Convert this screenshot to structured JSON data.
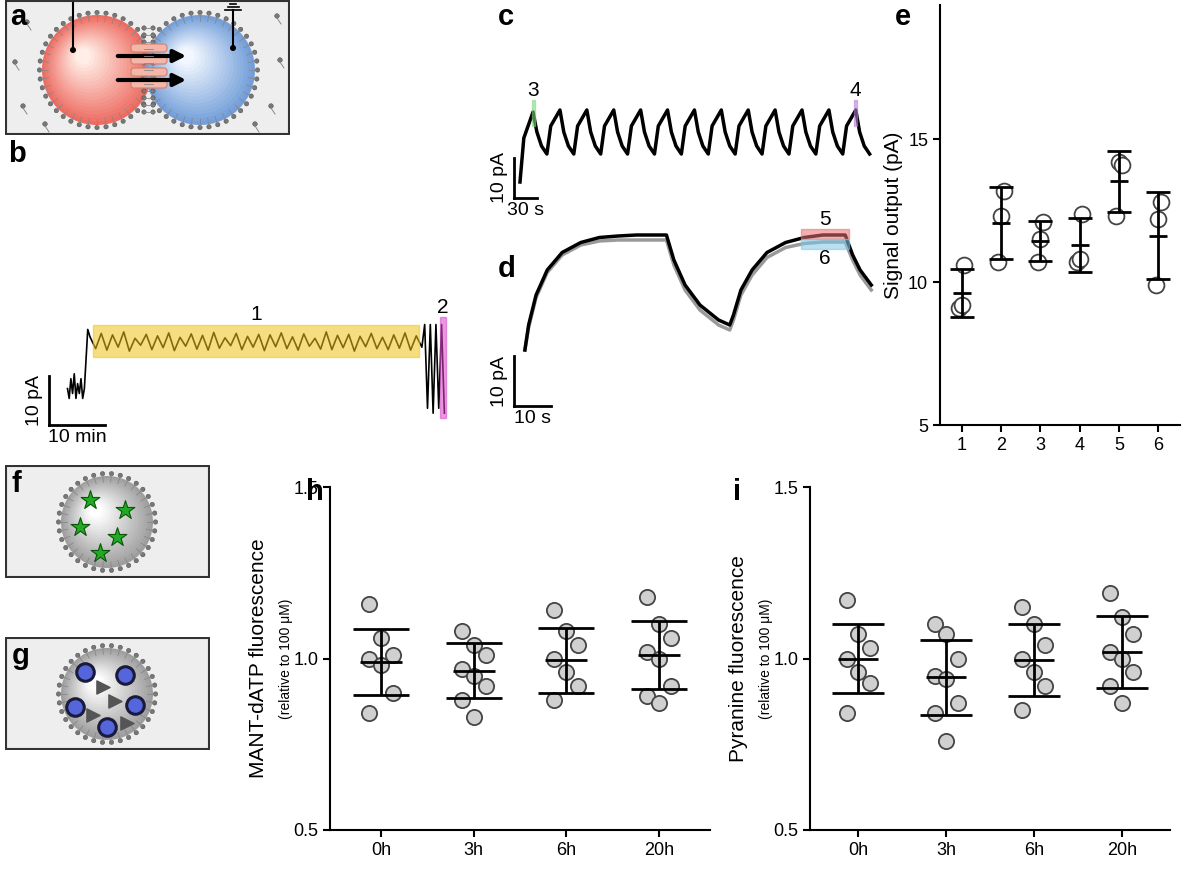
{
  "diagrams": [
    {
      "panel": "a"
    },
    {
      "panel": "f"
    },
    {
      "panel": "g"
    }
  ],
  "chart_data": [
    {
      "panel": "b",
      "type": "line",
      "tick_labels": false,
      "color": "#000000",
      "x": [
        0,
        0.3,
        0.6,
        0.9,
        1.2,
        1.5,
        1.8,
        2.1,
        2.4,
        2.7,
        3.0,
        3.3,
        3.6,
        4,
        5,
        6,
        7,
        8,
        9,
        10,
        11,
        12,
        13,
        14,
        15,
        16,
        17,
        18,
        19,
        20,
        21,
        22,
        23,
        24,
        25,
        26,
        27,
        28,
        29,
        30,
        31,
        32,
        33,
        34,
        35,
        36,
        37,
        38,
        39,
        40,
        41,
        42,
        43,
        44,
        45,
        46,
        47,
        48,
        49,
        50,
        51,
        52,
        53,
        54,
        55,
        56,
        57,
        58,
        59,
        60,
        61,
        62,
        63,
        63.5,
        64,
        64.5,
        65,
        65.5,
        66,
        66.5,
        67
      ],
      "values": [
        0,
        -2,
        2,
        -1,
        3,
        -2,
        1,
        -1,
        2,
        -2,
        0,
        6,
        12,
        10.5,
        8.1,
        11.2,
        7.8,
        10.9,
        8.4,
        11.5,
        7.6,
        10.2,
        8.8,
        11.0,
        7.9,
        10.7,
        8.3,
        11.3,
        7.7,
        10.4,
        8.6,
        11.1,
        8.0,
        10.8,
        7.8,
        11.4,
        8.2,
        10.3,
        8.7,
        11.2,
        7.9,
        10.6,
        8.4,
        11.0,
        7.7,
        10.9,
        8.5,
        11.3,
        8.1,
        10.5,
        7.8,
        11.1,
        8.6,
        10.2,
        8.0,
        11.5,
        7.9,
        10.8,
        8.3,
        11.0,
        7.6,
        10.6,
        8.5,
        11.2,
        8.1,
        10.4,
        7.9,
        10.9,
        8.2,
        11.3,
        7.8,
        10.7,
        8.4,
        13,
        -4,
        13,
        -5,
        13,
        -4,
        13,
        -5
      ],
      "xlim": [
        -4,
        68
      ],
      "ylim": [
        -8,
        20
      ],
      "scale_bar": {
        "x": {
          "value": 10,
          "label": "10 min"
        },
        "y": {
          "value": 10,
          "label": "10 pA"
        }
      },
      "highlights": [
        {
          "label": "1",
          "x": [
            4.5,
            62.5
          ],
          "y": [
            6.5,
            13
          ],
          "color": "#f0c419"
        },
        {
          "label": "2",
          "x": [
            66.3,
            67.3
          ],
          "y": [
            -6,
            14.5
          ],
          "color": "#d946c8"
        }
      ]
    },
    {
      "panel": "c",
      "type": "line",
      "tick_labels": false,
      "color": "#000000",
      "x": [
        0,
        5,
        17,
        22,
        28,
        35,
        40,
        52,
        57,
        63,
        70,
        75,
        87,
        92,
        98,
        105,
        110,
        122,
        127,
        133,
        140,
        145,
        157,
        162,
        168,
        175,
        180,
        192,
        197,
        203,
        210,
        215,
        227,
        232,
        238,
        245,
        250,
        262,
        267,
        273,
        280,
        285,
        297,
        302,
        308,
        315,
        320,
        332,
        337,
        343,
        350,
        355,
        367,
        372,
        378,
        385,
        390,
        402,
        407,
        413,
        420,
        425,
        437,
        442,
        448,
        455
      ],
      "values": [
        -6,
        5,
        11.5,
        6.5,
        3,
        1,
        8,
        12,
        6.5,
        3,
        1,
        8,
        12,
        6.5,
        3,
        1,
        8,
        12,
        6.5,
        3,
        1,
        8,
        12,
        6.5,
        3,
        1,
        8,
        12,
        6.5,
        3,
        1,
        8,
        12,
        6.5,
        3,
        1,
        8,
        12,
        6.5,
        3,
        1,
        8,
        12,
        6.5,
        3,
        1,
        8,
        12,
        6.5,
        3,
        1,
        8,
        12,
        6.5,
        3,
        1,
        8,
        12,
        6.5,
        3,
        1,
        8,
        12,
        6.5,
        3,
        1
      ],
      "xlim": [
        -13,
        462
      ],
      "ylim": [
        -10.5,
        17
      ],
      "scale_bar": {
        "x": {
          "value": 30,
          "label": "30 s"
        },
        "y": {
          "value": 10,
          "label": "10 pA"
        }
      },
      "highlights": [
        {
          "label": "3",
          "x": [
            15,
            19
          ],
          "y": [
            8,
            14.5
          ],
          "color": "#7fd67f"
        },
        {
          "label": "4",
          "x": [
            435,
            439
          ],
          "y": [
            8,
            14.5
          ],
          "color": "#b57fd6"
        }
      ]
    },
    {
      "panel": "d",
      "type": "line",
      "tick_labels": false,
      "x": [
        0,
        1,
        3,
        6,
        10,
        15,
        20,
        25,
        30,
        38,
        40,
        43,
        47,
        52,
        55,
        56,
        58,
        61,
        65,
        70,
        75,
        80,
        86,
        88,
        90,
        93
      ],
      "series": [
        {
          "color": "#9a9a9a",
          "values": [
            0,
            4.5,
            10.5,
            15.5,
            19,
            21,
            21.8,
            22,
            22,
            22,
            17,
            12,
            8,
            5,
            4,
            6,
            11,
            15,
            18.5,
            20.5,
            21.3,
            21.6,
            21.6,
            18,
            15,
            12
          ]
        },
        {
          "color": "#000000",
          "values": [
            0,
            5,
            11,
            16,
            19.5,
            21.5,
            22.5,
            22.8,
            23,
            23,
            18,
            13,
            9,
            6,
            5,
            7,
            12,
            16,
            19.5,
            21.5,
            22.5,
            23,
            23,
            19,
            16,
            13
          ]
        }
      ],
      "xlim": [
        -4,
        94
      ],
      "ylim": [
        -12,
        26
      ],
      "scale_bar": {
        "x": {
          "value": 10,
          "label": "10 s"
        },
        "y": {
          "value": 10,
          "label": "10 pA"
        }
      },
      "highlights": [
        {
          "label": "5",
          "x": [
            74,
            87
          ],
          "y": [
            22.3,
            24.3
          ],
          "color": "#e87070"
        },
        {
          "label": "6",
          "x": [
            74,
            87
          ],
          "y": [
            20.3,
            22.2
          ],
          "color": "#7ec8e8"
        }
      ]
    },
    {
      "panel": "e",
      "type": "scatter",
      "categories": [
        "1",
        "2",
        "3",
        "4",
        "5",
        "6"
      ],
      "ylabel": "Signal output (pA)",
      "ylim": [
        5,
        19.7
      ],
      "yticks": [
        5,
        10,
        15
      ],
      "color": "#ffffff",
      "points": [
        [
          9.1,
          9.2,
          10.6
        ],
        [
          10.7,
          12.3,
          13.2
        ],
        [
          10.7,
          11.5,
          12.1
        ],
        [
          10.7,
          10.8,
          12.4
        ],
        [
          12.3,
          14.2,
          14.1
        ],
        [
          9.9,
          12.2,
          12.8
        ]
      ],
      "mean": [
        9.63,
        12.07,
        11.43,
        11.3,
        13.53,
        11.63
      ],
      "sd": [
        0.84,
        1.26,
        0.7,
        0.95,
        1.07,
        1.53
      ]
    },
    {
      "panel": "h",
      "type": "scatter",
      "categories": [
        "0h",
        "3h",
        "6h",
        "20h"
      ],
      "ylabel": "MANT-dATP fluorescence",
      "ylabel_sub": "(relative to 100 μM)",
      "ylim": [
        0.5,
        1.5
      ],
      "yticks": [
        0.5,
        {
          "value": 1,
          "label": "1.0"
        },
        1.5
      ],
      "color": "#d0d0d0",
      "points": [
        [
          1.16,
          1.06,
          1.01,
          1.0,
          0.98,
          0.9,
          0.84
        ],
        [
          1.08,
          1.04,
          1.01,
          0.97,
          0.95,
          0.92,
          0.88,
          0.83
        ],
        [
          1.14,
          1.08,
          1.04,
          1.0,
          0.96,
          0.92,
          0.88
        ],
        [
          1.18,
          1.1,
          1.06,
          1.02,
          1.0,
          0.92,
          0.89,
          0.87
        ]
      ],
      "mean": [
        0.99,
        0.965,
        0.995,
        1.01
      ],
      "sd": [
        0.095,
        0.08,
        0.095,
        0.1
      ]
    },
    {
      "panel": "i",
      "type": "scatter",
      "categories": [
        "0h",
        "3h",
        "6h",
        "20h"
      ],
      "ylabel": "Pyranine fluorescence",
      "ylabel_sub": "(relative to 100 μM)",
      "ylim": [
        0.5,
        1.5
      ],
      "yticks": [
        0.5,
        {
          "value": 1,
          "label": "1.0"
        },
        1.5
      ],
      "color": "#d0d0d0",
      "points": [
        [
          1.17,
          1.07,
          1.03,
          1.0,
          0.96,
          0.93,
          0.84
        ],
        [
          1.1,
          1.07,
          1.0,
          0.95,
          0.94,
          0.87,
          0.84,
          0.76
        ],
        [
          1.15,
          1.1,
          1.04,
          1.0,
          0.96,
          0.92,
          0.85
        ],
        [
          1.19,
          1.12,
          1.07,
          1.02,
          1.0,
          0.96,
          0.92,
          0.87
        ]
      ],
      "mean": [
        1.0,
        0.945,
        0.995,
        1.02
      ],
      "sd": [
        0.1,
        0.11,
        0.105,
        0.105
      ]
    }
  ]
}
